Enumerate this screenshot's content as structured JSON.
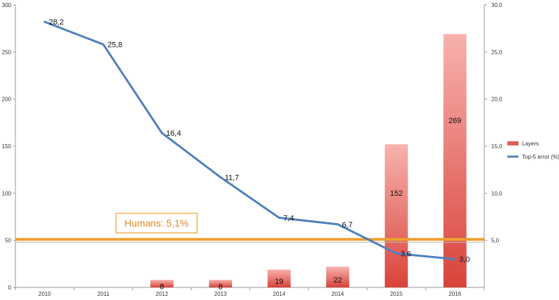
{
  "chart_data": {
    "type": "bar",
    "categories": [
      "2010",
      "2011",
      "2012",
      "2013",
      "2014",
      "2014",
      "2015",
      "2016"
    ],
    "series": [
      {
        "name": "Layers",
        "type": "bar",
        "axis": "left",
        "values": [
          null,
          null,
          8,
          8,
          19,
          22,
          152,
          269
        ],
        "labels": [
          "",
          "",
          "8",
          "8",
          "19",
          "22",
          "152",
          "269"
        ]
      },
      {
        "name": "Top-5 error (%)",
        "type": "line",
        "axis": "right",
        "values": [
          28.2,
          25.8,
          16.4,
          11.7,
          7.4,
          6.7,
          3.6,
          3.0
        ],
        "labels": [
          "28,2",
          "25,8",
          "16,4",
          "11,7",
          "7,4",
          "6,7",
          "3,6",
          "3,0"
        ]
      }
    ],
    "y_left": {
      "range": [
        0,
        300
      ],
      "ticks": [
        "0",
        "50",
        "100",
        "150",
        "200",
        "250",
        "300"
      ]
    },
    "y_right": {
      "range": [
        0,
        30
      ],
      "ticks": [
        "5,0",
        "10,0",
        "15,0",
        "20,0",
        "25,0",
        "30,0"
      ]
    },
    "reference_line": {
      "label": "Humans: 5,1%",
      "value": 5.1,
      "axis": "right"
    },
    "legend_position": "right",
    "grid": false
  },
  "colors": {
    "bar_top": "#f8b2ae",
    "bar_bottom": "#d8433a",
    "line": "#4f81bd",
    "humans_line": "#f0a030",
    "humans_text": "#e08a20",
    "axis": "#999999"
  }
}
